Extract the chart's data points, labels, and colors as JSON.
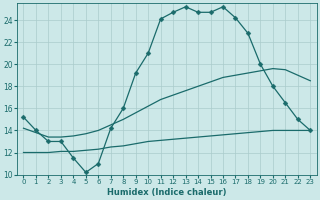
{
  "xlabel": "Humidex (Indice chaleur)",
  "ylabel": "",
  "xlim": [
    -0.5,
    23.5
  ],
  "ylim": [
    10,
    25.5
  ],
  "yticks": [
    10,
    12,
    14,
    16,
    18,
    20,
    22,
    24
  ],
  "xticks": [
    0,
    1,
    2,
    3,
    4,
    5,
    6,
    7,
    8,
    9,
    10,
    11,
    12,
    13,
    14,
    15,
    16,
    17,
    18,
    19,
    20,
    21,
    22,
    23
  ],
  "background_color": "#cce8e8",
  "grid_color": "#aacccc",
  "line_color": "#1a6b6b",
  "lines": [
    {
      "x": [
        0,
        1,
        2,
        3,
        4,
        5,
        6,
        7,
        8,
        9,
        10,
        11,
        12,
        13,
        14,
        15,
        16,
        17,
        18,
        19,
        20,
        21,
        22,
        23
      ],
      "y": [
        15.2,
        14.0,
        13.0,
        13.0,
        11.5,
        10.2,
        11.0,
        14.2,
        16.0,
        19.2,
        21.0,
        24.1,
        24.7,
        25.2,
        24.7,
        24.7,
        25.2,
        24.2,
        22.8,
        20.0,
        18.0,
        16.5,
        15.0,
        14.0
      ],
      "marker": "D",
      "markersize": 2.5,
      "linewidth": 0.9
    },
    {
      "x": [
        0,
        1,
        2,
        3,
        4,
        5,
        6,
        7,
        8,
        9,
        10,
        11,
        12,
        13,
        14,
        15,
        16,
        17,
        18,
        19,
        20,
        21,
        22,
        23
      ],
      "y": [
        14.2,
        13.8,
        13.4,
        13.4,
        13.5,
        13.7,
        14.0,
        14.5,
        15.0,
        15.6,
        16.2,
        16.8,
        17.2,
        17.6,
        18.0,
        18.4,
        18.8,
        19.0,
        19.2,
        19.4,
        19.6,
        19.5,
        19.0,
        18.5
      ],
      "marker": null,
      "markersize": 0,
      "linewidth": 0.9
    },
    {
      "x": [
        0,
        1,
        2,
        3,
        4,
        5,
        6,
        7,
        8,
        9,
        10,
        11,
        12,
        13,
        14,
        15,
        16,
        17,
        18,
        19,
        20,
        21,
        22,
        23
      ],
      "y": [
        12.0,
        12.0,
        12.0,
        12.1,
        12.1,
        12.2,
        12.3,
        12.5,
        12.6,
        12.8,
        13.0,
        13.1,
        13.2,
        13.3,
        13.4,
        13.5,
        13.6,
        13.7,
        13.8,
        13.9,
        14.0,
        14.0,
        14.0,
        14.0
      ],
      "marker": null,
      "markersize": 0,
      "linewidth": 0.9
    }
  ]
}
